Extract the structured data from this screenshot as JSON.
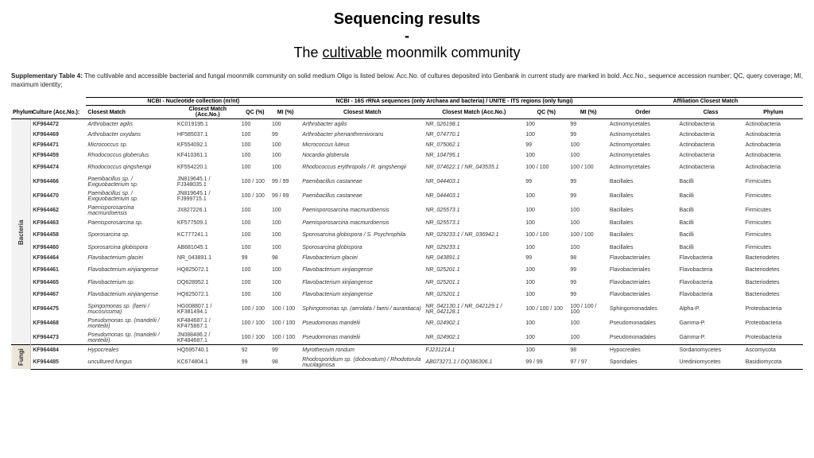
{
  "title": {
    "main": "Sequencing results",
    "dash": "-",
    "sub_pre": "The ",
    "sub_u": "cultivable",
    "sub_post": " moonmilk community"
  },
  "caption": {
    "lead": "Supplementary Table 4:",
    "text": " The cultivable and accessible bacterial and fungal moonmilk community on solid medium Oligo is listed below. Acc.No. of cultures deposited into Genbank in current study are marked in bold. Acc.No., sequence accession number; QC, query coverage; MI, maximum identity;"
  },
  "group_headers": {
    "g1": "NCBI - Nucleotide collection (nr/nt)",
    "g2": "NCBI - 16S rRNA sequences (only Archaea and bacteria) / UNITE - ITS regions (only fungi)",
    "g3": "Affiliation Closest Match"
  },
  "cols": {
    "phylum": "Phylum",
    "acc": "Culture (Acc.No.):",
    "cm1": "Closest Match",
    "cma1": "Closest Match (Acc.No.)",
    "qc1": "QC (%)",
    "mi1": "MI (%)",
    "cm2": "Closest Match",
    "cma2": "Closest Match (Acc.No.)",
    "qc2": "QC (%)",
    "mi2": "MI (%)",
    "order": "Order",
    "class": "Class",
    "phylum2": "Phylum"
  },
  "phyla": {
    "bacteria": "Bacteria",
    "fungi": "Fungi"
  },
  "rows_bacteria": [
    {
      "acc": "KF964472",
      "cm1": "Arthrobacter agilis",
      "cma1": "KC019195.1",
      "qc1": "100",
      "mi1": "100",
      "cm2": "Arthrobacter agilis",
      "cma2": "NR_026198.1",
      "qc2": "100",
      "mi2": "99",
      "ord": "Actinomycetales",
      "cls": "Actinobacteria",
      "phy": "Actinobacteria"
    },
    {
      "acc": "KF964469",
      "cm1": "Arthrobacter oxydans",
      "cma1": "HF585037.1",
      "qc1": "100",
      "mi1": "99",
      "cm2": "Arthrobacter phenanthrenivorans",
      "cma2": "NR_074770.1",
      "qc2": "100",
      "mi2": "99",
      "ord": "Actinomycetales",
      "cls": "Actinobacteria",
      "phy": "Actinobacteria"
    },
    {
      "acc": "KF964471",
      "cm1": "Micrococcus sp.",
      "cma1": "KF554092.1",
      "qc1": "100",
      "mi1": "100",
      "cm2": "Micrococcus luteus",
      "cma2": "NR_075062.1",
      "qc2": "99",
      "mi2": "100",
      "ord": "Actinomycetales",
      "cls": "Actinobacteria",
      "phy": "Actinobacteria"
    },
    {
      "acc": "KF964459",
      "cm1": "Rhodococcus globerulus",
      "cma1": "KF410361.1",
      "qc1": "100",
      "mi1": "100",
      "cm2": "Nocardia globerula",
      "cma2": "NR_104795.1",
      "qc2": "100",
      "mi2": "100",
      "ord": "Actinomycetales",
      "cls": "Actinobacteria",
      "phy": "Actinobacteria"
    },
    {
      "acc": "KF964474",
      "cm1": "Rhodococcus qingshengii",
      "cma1": "KF554220.1",
      "qc1": "100",
      "mi1": "100",
      "cm2": "Rhodococcus erythropolis / R. qingshengii",
      "cma2": "NR_074622.1 / NR_043535.1",
      "qc2": "100 / 100",
      "mi2": "100 / 100",
      "ord": "Actinomycetales",
      "cls": "Actinobacteria",
      "phy": "Actinobacteria",
      "tall": true
    },
    {
      "acc": "KF964466",
      "cm1": "Paenibacillus sp. / Exiguobacterium sp.",
      "cma1": "JN819645.1 / FJ348035.1",
      "qc1": "100 / 100",
      "mi1": "99 / 99",
      "cm2": "Paenibacillus castaneae",
      "cma2": "NR_044403.1",
      "qc2": "99",
      "mi2": "99",
      "ord": "Bacillales",
      "cls": "Bacilli",
      "phy": "Firmicutes",
      "tall": true
    },
    {
      "acc": "KF964470",
      "cm1": "Paenibacillus sp. / Exiguobacterium sp.",
      "cma1": "JN819645.1 / FJ999715.1",
      "qc1": "100 / 100",
      "mi1": "99 / 99",
      "cm2": "Paenibacillus castaneae",
      "cma2": "NR_044403.1",
      "qc2": "100",
      "mi2": "99",
      "ord": "Bacillales",
      "cls": "Bacilli",
      "phy": "Firmicutes",
      "tall": true
    },
    {
      "acc": "KF964462",
      "cm1": "Paenisporosarcina macmurdoensis",
      "cma1": "JX827226.1",
      "qc1": "100",
      "mi1": "100",
      "cm2": "Paenisporosarcina macmurdoensis",
      "cma2": "NR_025573.1",
      "qc2": "100",
      "mi2": "100",
      "ord": "Bacillales",
      "cls": "Bacilli",
      "phy": "Firmicutes",
      "tall": true
    },
    {
      "acc": "KF964463",
      "cm1": "Paenisporosarcina sp.",
      "cma1": "KF577509.1",
      "qc1": "100",
      "mi1": "100",
      "cm2": "Paenisporosarcina macmurdoensis",
      "cma2": "NR_025573.1",
      "qc2": "100",
      "mi2": "100",
      "ord": "Bacillales",
      "cls": "Bacilli",
      "phy": "Firmicutes"
    },
    {
      "acc": "KF964458",
      "cm1": "Sporosarcina sp.",
      "cma1": "KC777241.1",
      "qc1": "100",
      "mi1": "100",
      "cm2": "Sporosarcina globispora / S. Psychrophila",
      "cma2": "NR_029233.1 / NR_036942.1",
      "qc2": "100 / 100",
      "mi2": "100 / 100",
      "ord": "Bacillales",
      "cls": "Bacilli",
      "phy": "Firmicutes",
      "tall": true
    },
    {
      "acc": "KF964460",
      "cm1": "Sporosarcina globispora",
      "cma1": "AB681045.1",
      "qc1": "100",
      "mi1": "100",
      "cm2": "Sporosarcina globispora",
      "cma2": "NR_029233.1",
      "qc2": "100",
      "mi2": "100",
      "ord": "Bacillales",
      "cls": "Bacilli",
      "phy": "Firmicutes"
    },
    {
      "acc": "KF964464",
      "cm1": "Flavobacterium glaciei",
      "cma1": "NR_043891.1",
      "qc1": "99",
      "mi1": "98",
      "cm2": "Flavobacterium glaciei",
      "cma2": "NR_043891.1",
      "qc2": "99",
      "mi2": "98",
      "ord": "Flavobacteriales",
      "cls": "Flavobacteria",
      "phy": "Bacteriodetes"
    },
    {
      "acc": "KF964461",
      "cm1": "Flavobacterium xinjiangense",
      "cma1": "HQ825072.1",
      "qc1": "100",
      "mi1": "100",
      "cm2": "Flavobacterium xinjiangense",
      "cma2": "NR_025201.1",
      "qc2": "100",
      "mi2": "99",
      "ord": "Flavobacteriales",
      "cls": "Flavobacteria",
      "phy": "Bacteriodetes",
      "tall": true
    },
    {
      "acc": "KF964465",
      "cm1": "Flavobacterium sp.",
      "cma1": "DQ628952.1",
      "qc1": "100",
      "mi1": "100",
      "cm2": "Flavobacterium xinjiangense",
      "cma2": "NR_025201.1",
      "qc2": "100",
      "mi2": "99",
      "ord": "Flavobacteriales",
      "cls": "Flavobacteria",
      "phy": "Bacteriodetes"
    },
    {
      "acc": "KF964467",
      "cm1": "Flavobacterium xinjiangense",
      "cma1": "HQ825072.1",
      "qc1": "100",
      "mi1": "100",
      "cm2": "Flavobacterium xinjiangense",
      "cma2": "NR_025201.1",
      "qc2": "100",
      "mi2": "99",
      "ord": "Flavobacteriales",
      "cls": "Flavobacteria",
      "phy": "Bacteriodetes",
      "tall": true
    },
    {
      "acc": "KF964475",
      "cm1": "Spingomonas sp. (faeni / mucosissima)",
      "cma1": "HG008807.1 / KF381494.1",
      "qc1": "100 / 100",
      "mi1": "100 / 100",
      "cm2": "Sphingomonas sp. (aerolata / faeni / aurantiaca)",
      "cma2": "NR_042130.1 / NR_042129.1 / NR_042128.1",
      "qc2": "100 / 100 / 100",
      "mi2": "100 / 100 / 100",
      "ord": "Sphingomonadales",
      "cls": "Alpha-P.",
      "phy": "Proteobacteria",
      "tall": true
    },
    {
      "acc": "KF964468",
      "cm1": "Pseudomonas sp. (mandelii / monteilii)",
      "cma1": "KF484687.1 / KF475867.1",
      "qc1": "100 / 100",
      "mi1": "100 / 100",
      "cm2": "Pseudomonas mandelii",
      "cma2": "NR_024902.1",
      "qc2": "100",
      "mi2": "100",
      "ord": "Pseudomonadales",
      "cls": "Gamma-P.",
      "phy": "Proteobacteria",
      "tall": true
    },
    {
      "acc": "KF964473",
      "cm1": "Pseudomonas sp. (mandelii / monteilii)",
      "cma1": "JN088486.2 / KF484687.1",
      "qc1": "100 / 100",
      "mi1": "100 / 100",
      "cm2": "Pseudomonas mandelii",
      "cma2": "NR_024902.1",
      "qc2": "100",
      "mi2": "100",
      "ord": "Pseudomonadales",
      "cls": "Gamma-P.",
      "phy": "Proteobacteria",
      "tall": true
    }
  ],
  "rows_fungi": [
    {
      "acc": "KF964484",
      "cm1": "Hypocreales",
      "cma1": "HQ595740.1",
      "qc1": "92",
      "mi1": "99",
      "cm2": "Myrothecium roridum",
      "cma2": "FJ231214.1",
      "qc2": "100",
      "mi2": "98",
      "ord": "Hypocreales",
      "cls": "Sordariomycetes",
      "phy": "Ascomycota"
    },
    {
      "acc": "KF964485",
      "cm1": "uncultured fungus",
      "cma1": "KC674804.1",
      "qc1": "99",
      "mi1": "98",
      "cm2": "Rhodosporidium sp. (diobovatum) / Rhodotorula mucilaginosa",
      "cma2": "AB073271.1 / DQ386306.1",
      "qc2": "99 / 99",
      "mi2": "97 / 97",
      "ord": "Sporidiales",
      "cls": "Urediniomycetes",
      "phy": "Basidiomycota",
      "tall": true
    }
  ]
}
